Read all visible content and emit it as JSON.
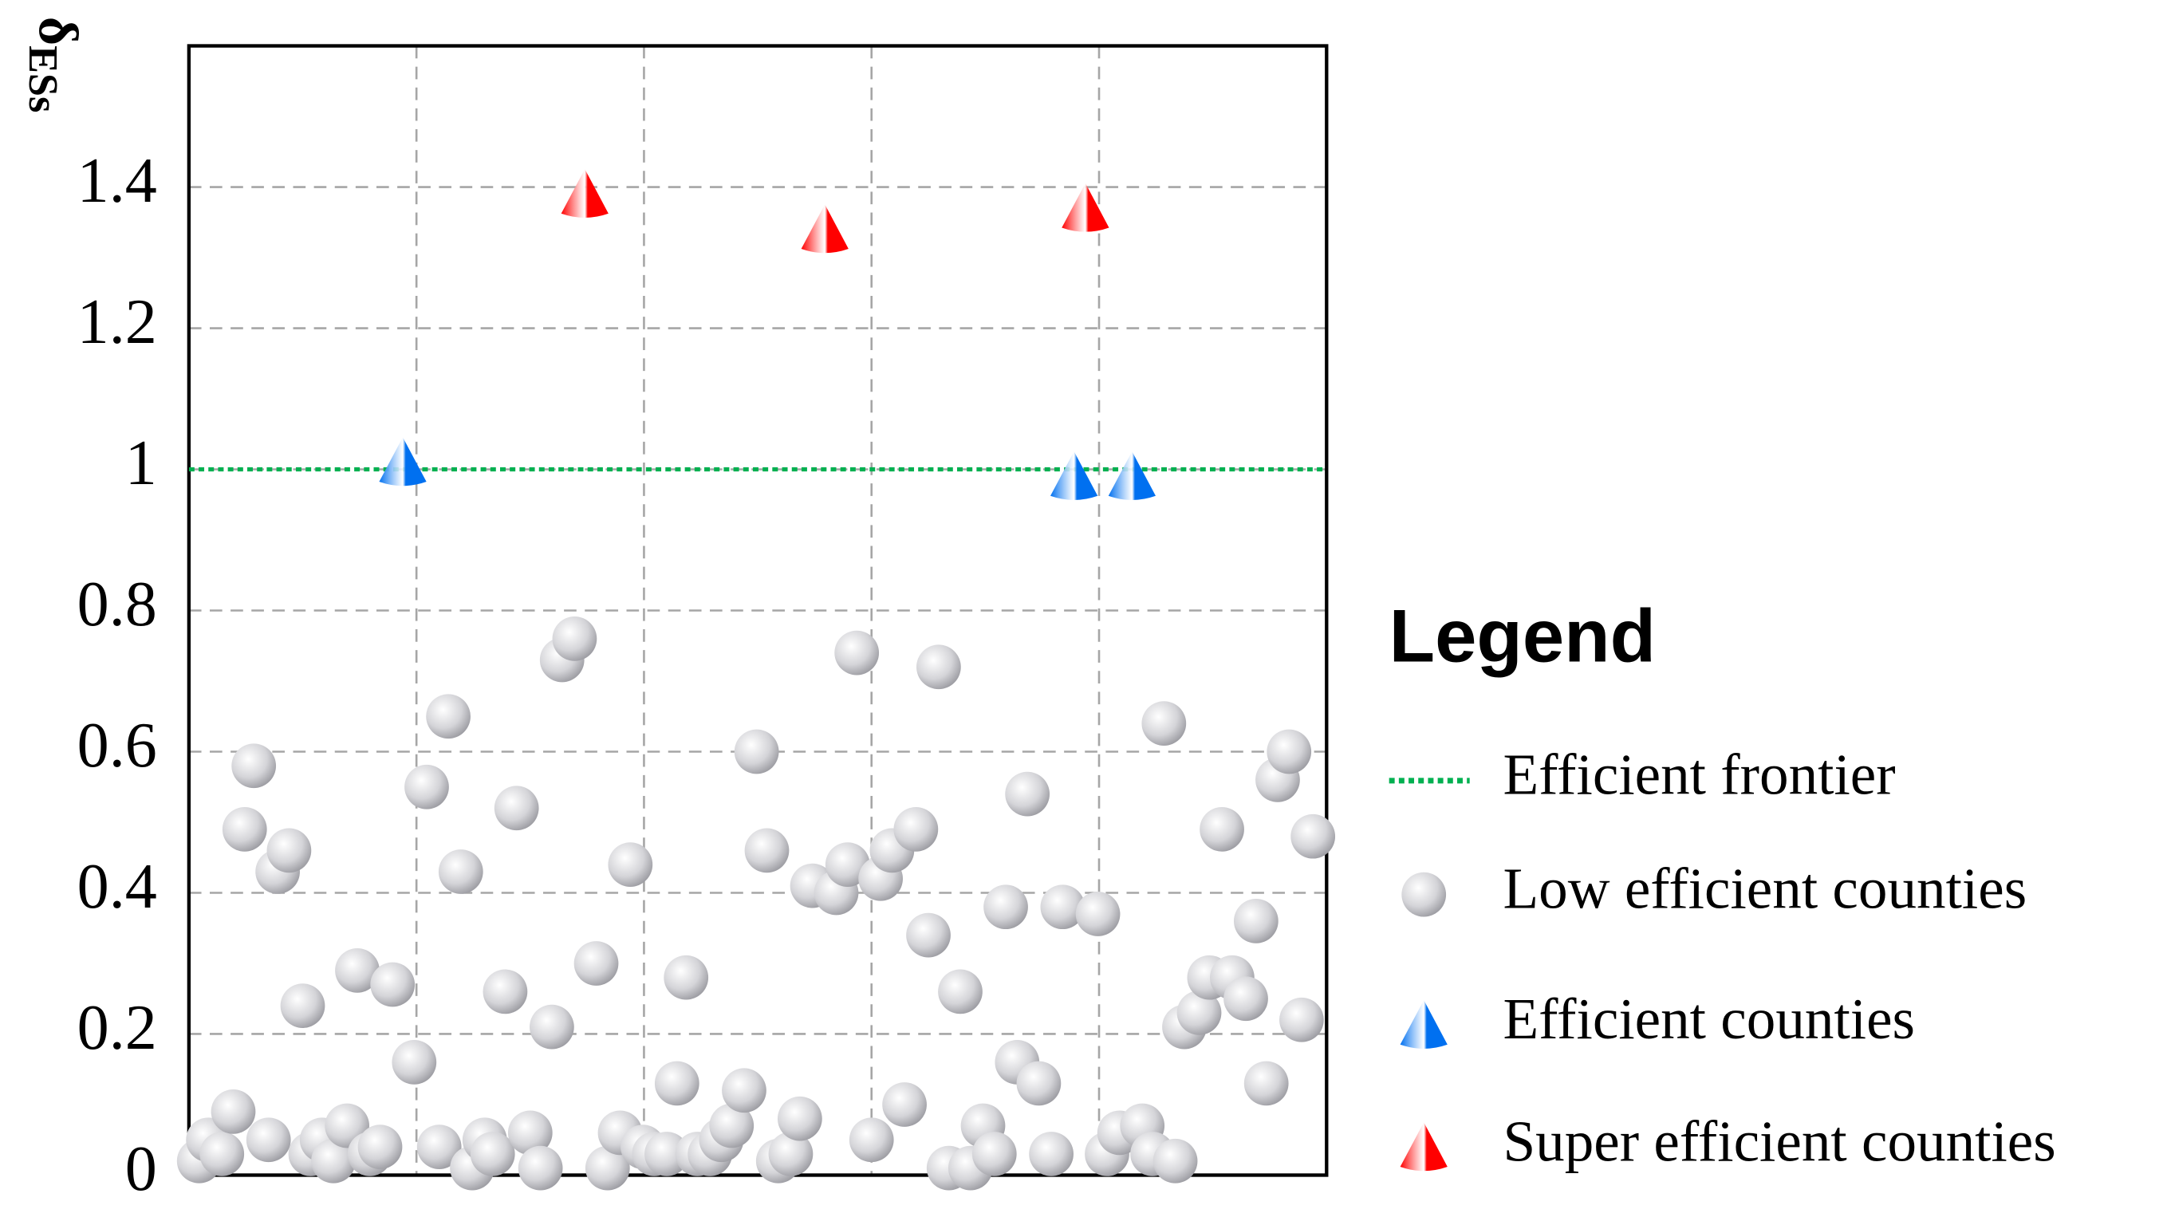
{
  "chart_data": {
    "type": "scatter",
    "ylabel": "δ",
    "ylabel_sub": "ESs",
    "legend_title": "Legend",
    "xlim": [
      0,
      100
    ],
    "xgrid": [
      20,
      40,
      60,
      80
    ],
    "ylim": [
      0,
      1.6
    ],
    "yticks": [
      0,
      0.2,
      0.4,
      0.6,
      0.8,
      1,
      1.2,
      1.4
    ],
    "grid": true,
    "frontier": {
      "name": "Efficient frontier",
      "color": "#00b050",
      "y": 1
    },
    "series": [
      {
        "name": "Low efficient counties",
        "marker": "ball",
        "color": "#d9d9d9",
        "x": [
          0.9,
          1.7,
          2.9,
          3.9,
          4.9,
          5.7,
          7.0,
          7.8,
          8.8,
          10.0,
          10.7,
          11.7,
          12.7,
          13.9,
          14.8,
          15.9,
          16.8,
          17.9,
          19.8,
          20.9,
          22.0,
          22.8,
          23.9,
          24.9,
          26.0,
          26.7,
          27.8,
          28.8,
          30.0,
          30.9,
          31.9,
          32.8,
          33.9,
          35.8,
          36.8,
          37.9,
          38.8,
          39.9,
          40.9,
          42.0,
          42.9,
          43.7,
          44.7,
          45.8,
          46.8,
          47.7,
          48.8,
          49.9,
          50.8,
          51.8,
          52.9,
          53.7,
          54.8,
          56.9,
          57.9,
          58.7,
          60.0,
          60.8,
          61.8,
          62.9,
          63.9,
          65.0,
          65.9,
          66.8,
          67.8,
          68.7,
          69.8,
          70.8,
          71.8,
          72.8,
          73.7,
          74.7,
          75.8,
          76.8,
          79.9,
          80.7,
          81.8,
          83.8,
          84.7,
          85.7,
          86.7,
          87.5,
          88.8,
          89.7,
          90.8,
          91.7,
          92.9,
          93.8,
          94.7,
          95.7,
          96.7,
          97.8,
          98.8
        ],
        "values": [
          0.02,
          0.05,
          0.03,
          0.09,
          0.49,
          0.58,
          0.05,
          0.43,
          0.46,
          0.24,
          0.03,
          0.05,
          0.02,
          0.07,
          0.29,
          0.03,
          0.04,
          0.27,
          0.16,
          0.55,
          0.04,
          0.65,
          0.43,
          0.01,
          0.05,
          0.03,
          0.26,
          0.52,
          0.06,
          0.01,
          0.21,
          0.73,
          0.76,
          0.3,
          0.01,
          0.06,
          0.44,
          0.04,
          0.03,
          0.03,
          0.13,
          0.28,
          0.03,
          0.03,
          0.05,
          0.07,
          0.12,
          0.6,
          0.46,
          0.02,
          0.03,
          0.08,
          0.41,
          0.4,
          0.44,
          0.74,
          0.05,
          0.42,
          0.46,
          0.1,
          0.49,
          0.34,
          0.72,
          0.01,
          0.26,
          0.01,
          0.07,
          0.03,
          0.38,
          0.16,
          0.54,
          0.13,
          0.03,
          0.38,
          0.37,
          0.03,
          0.06,
          0.07,
          0.03,
          0.64,
          0.02,
          0.21,
          0.23,
          0.28,
          0.49,
          0.28,
          0.25,
          0.36,
          0.13,
          0.56,
          0.6,
          0.22,
          0.48
        ]
      },
      {
        "name": "Efficient counties",
        "marker": "cone",
        "color": "#0070f0",
        "x": [
          18.8,
          77.8,
          82.9
        ],
        "values": [
          1.01,
          0.99,
          0.99
        ]
      },
      {
        "name": "Super efficient counties",
        "marker": "cone",
        "color": "#ff0000",
        "x": [
          34.8,
          55.9,
          78.8
        ],
        "values": [
          1.39,
          1.34,
          1.37
        ]
      }
    ]
  }
}
